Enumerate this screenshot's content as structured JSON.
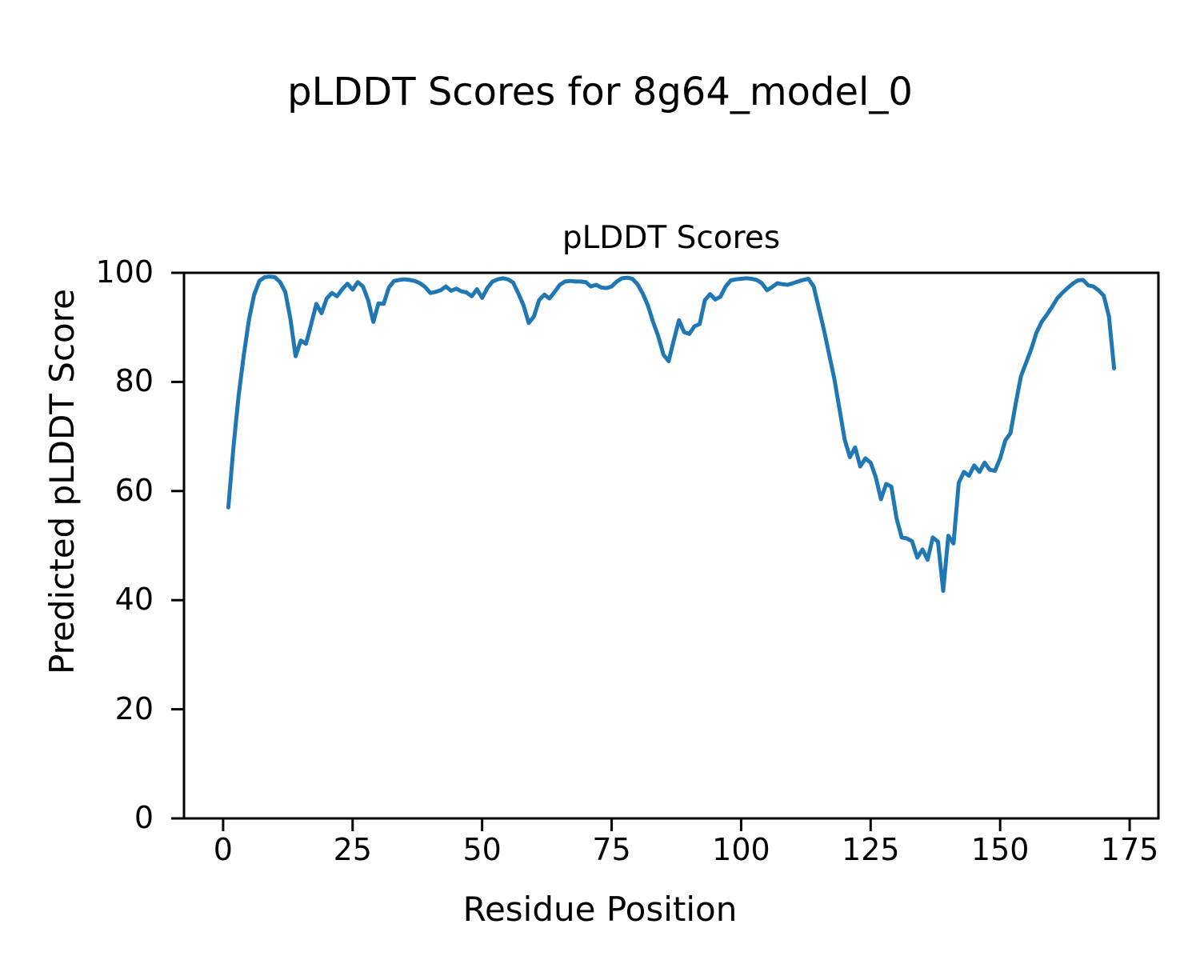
{
  "figure": {
    "suptitle": "pLDDT Scores for 8g64_model_0",
    "axes_title": "pLDDT Scores",
    "xlabel": "Residue Position",
    "ylabel": "Predicted pLDDT Score"
  },
  "chart_data": {
    "type": "line",
    "title": "pLDDT Scores",
    "suptitle": "pLDDT Scores for 8g64_model_0",
    "xlabel": "Residue Position",
    "ylabel": "Predicted pLDDT Score",
    "xlim": [
      -7.55,
      180.55
    ],
    "ylim": [
      0,
      100
    ],
    "x_ticks": [
      0,
      25,
      50,
      75,
      100,
      125,
      150,
      175
    ],
    "y_ticks": [
      0,
      20,
      40,
      60,
      80,
      100
    ],
    "grid": false,
    "legend": "none",
    "line_color": "#1f77b4",
    "spine_color": "#000000",
    "series": [
      {
        "name": "pLDDT",
        "x_start": 1,
        "x_step": 1,
        "x_end": 172,
        "y": [
          57,
          68,
          77.5,
          85,
          91.5,
          96,
          98.5,
          99.2,
          99.3,
          99.2,
          98.3,
          96.5,
          91.5,
          84.7,
          87.6,
          87,
          90.6,
          94.3,
          92.6,
          95.3,
          96.3,
          95.7,
          97,
          98,
          96.9,
          98.3,
          97.5,
          95,
          91,
          94.4,
          94.3,
          97.3,
          98.5,
          98.7,
          98.8,
          98.7,
          98.5,
          98.1,
          97.4,
          96.3,
          96.5,
          96.8,
          97.5,
          96.7,
          97.1,
          96.6,
          96.4,
          95.7,
          97,
          95.4,
          97.2,
          98.4,
          98.8,
          99,
          98.8,
          98.2,
          96.2,
          94,
          90.8,
          92,
          95,
          96,
          95.3,
          96.5,
          97.8,
          98.4,
          98.5,
          98.4,
          98.4,
          98.3,
          97.5,
          97.8,
          97.3,
          97.2,
          97.5,
          98.4,
          99,
          99.1,
          98.9,
          97.9,
          96.2,
          94,
          91,
          88.4,
          85,
          83.8,
          87.6,
          91.3,
          89.1,
          88.8,
          90.2,
          90.6,
          95,
          96.1,
          95.1,
          95.6,
          97.5,
          98.6,
          98.8,
          98.9,
          99,
          98.9,
          98.7,
          98.1,
          96.8,
          97.4,
          98.1,
          97.9,
          97.8,
          98.1,
          98.4,
          98.7,
          98.9,
          97.5,
          93.5,
          89.5,
          85,
          80.5,
          75,
          69.4,
          66.2,
          68,
          64.5,
          66,
          65.2,
          62.5,
          58.5,
          61.3,
          60.8,
          55,
          51.5,
          51.3,
          50.8,
          47.8,
          49.3,
          47.4,
          51.5,
          50.7,
          41.7,
          51.8,
          50.4,
          61.5,
          63.5,
          62.8,
          64.7,
          63.5,
          65.2,
          63.9,
          63.7,
          66,
          69.3,
          70.6,
          76,
          81,
          83.5,
          86,
          89,
          91,
          92.3,
          93.7,
          95.3,
          96.3,
          97.2,
          98,
          98.6,
          98.7,
          97.7,
          97.5,
          96.8,
          95.8,
          92,
          82.5
        ]
      }
    ]
  }
}
